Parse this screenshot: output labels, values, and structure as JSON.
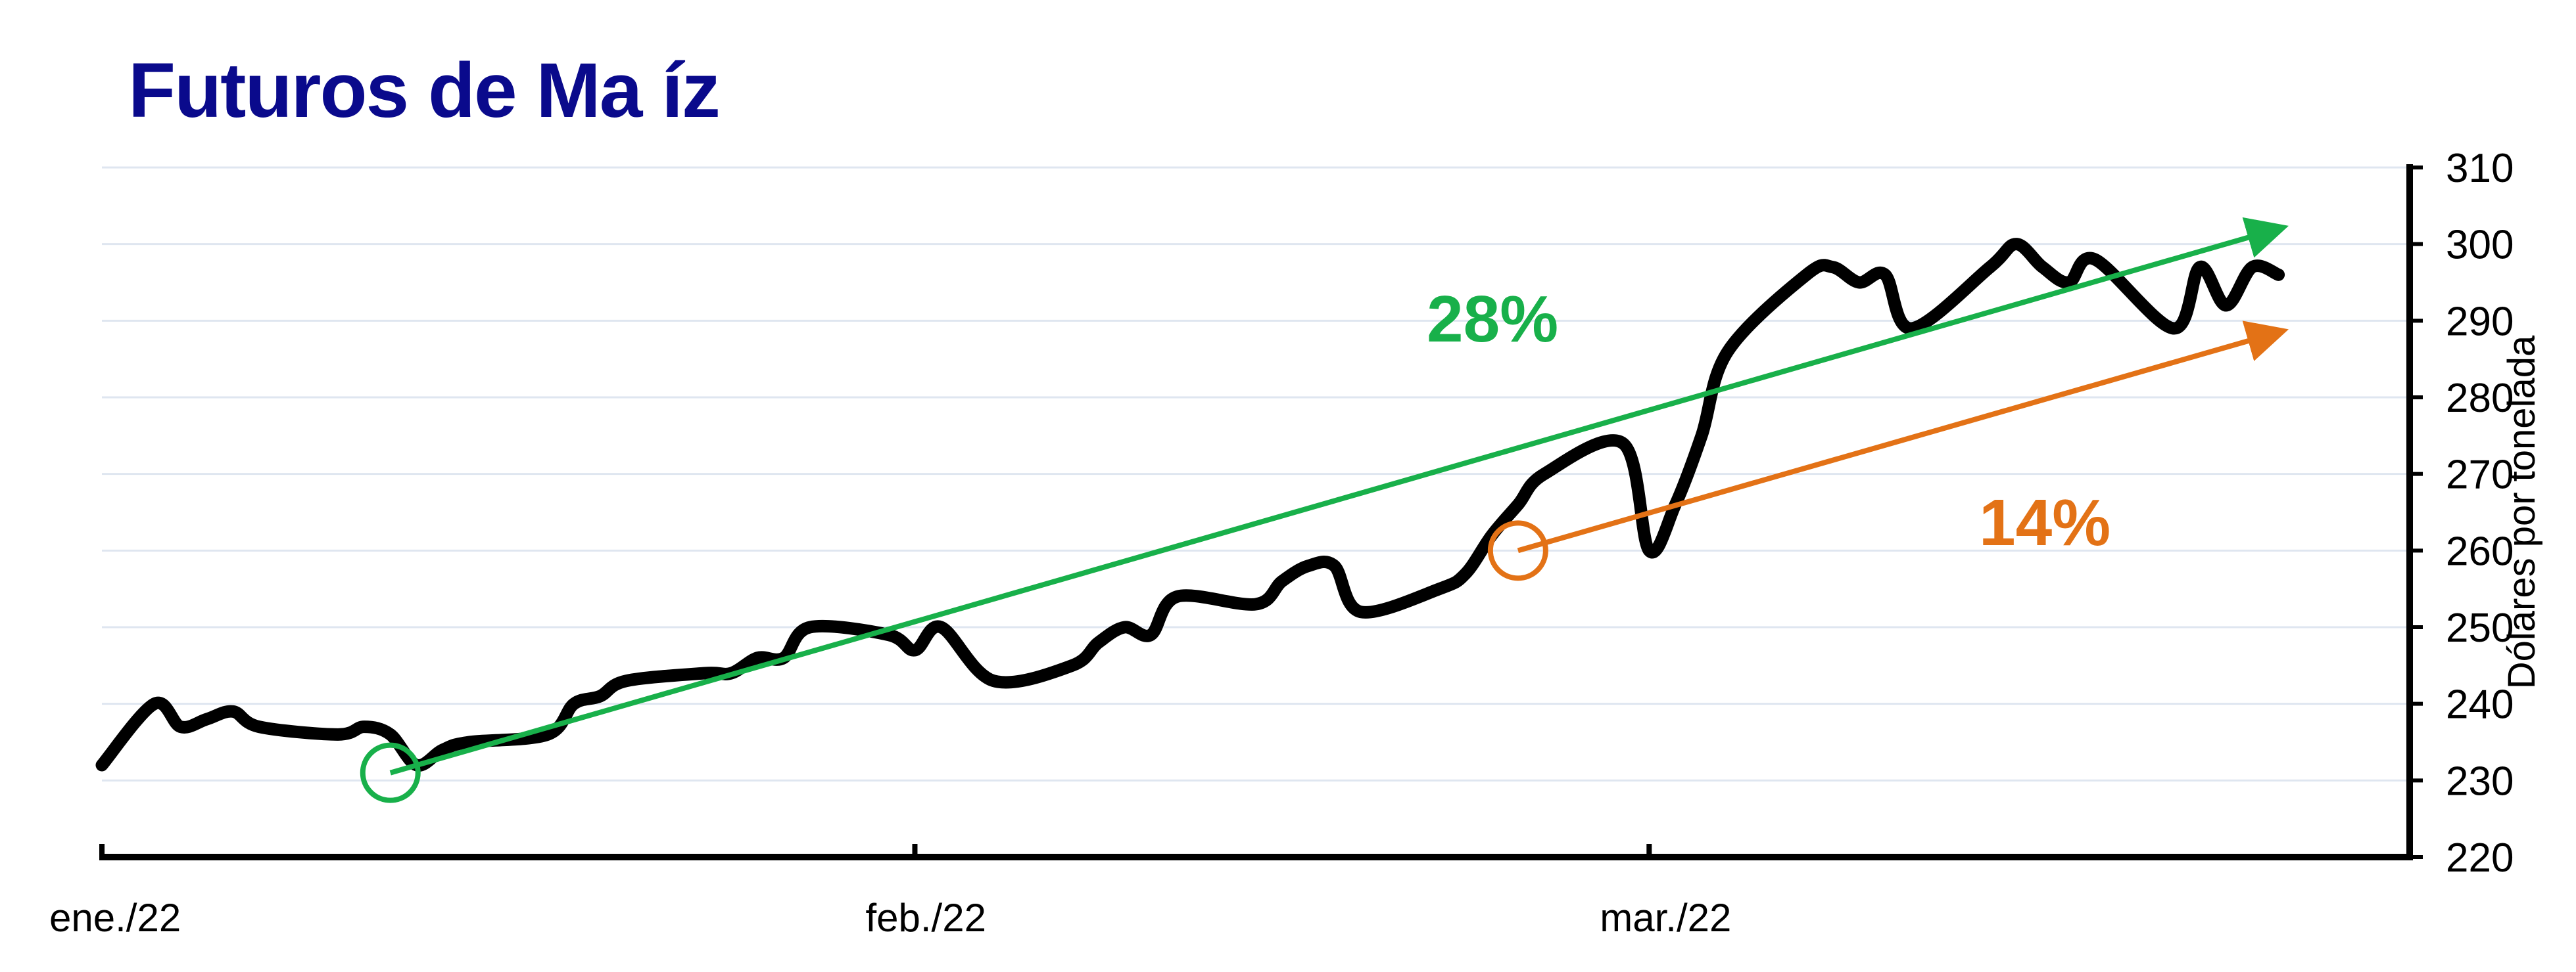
{
  "title": "Futuros de Ma íz",
  "chart_data": {
    "type": "line",
    "title": "Futuros de Ma íz",
    "xlabel": "",
    "ylabel": "Dólares por tonelada",
    "ylim": [
      220,
      310
    ],
    "yticks": [
      220,
      230,
      240,
      250,
      260,
      270,
      280,
      290,
      300,
      310
    ],
    "xlim": [
      "2022-01-01",
      "2022-03-30"
    ],
    "x_tick_labels": [
      {
        "label": "ene./22",
        "date": "2022-01-01"
      },
      {
        "label": "feb./22",
        "date": "2022-02-01"
      },
      {
        "label": "mar./22",
        "date": "2022-03-01"
      }
    ],
    "grid": true,
    "y_axis_side": "right",
    "series": [
      {
        "color": "#000000",
        "x": [
          "2022-01-01",
          "2022-01-03",
          "2022-01-04",
          "2022-01-05",
          "2022-01-06",
          "2022-01-07",
          "2022-01-10",
          "2022-01-11",
          "2022-01-12",
          "2022-01-13",
          "2022-01-14",
          "2022-01-15",
          "2022-01-18",
          "2022-01-19",
          "2022-01-20",
          "2022-01-21",
          "2022-01-24",
          "2022-01-25",
          "2022-01-26",
          "2022-01-27",
          "2022-01-28",
          "2022-01-31",
          "2022-02-01",
          "2022-02-02",
          "2022-02-04",
          "2022-02-07",
          "2022-02-08",
          "2022-02-09",
          "2022-02-10",
          "2022-02-11",
          "2022-02-14",
          "2022-02-15",
          "2022-02-16",
          "2022-02-17",
          "2022-02-18",
          "2022-02-21",
          "2022-02-22",
          "2022-02-23",
          "2022-02-24",
          "2022-02-25",
          "2022-02-28",
          "2022-03-01",
          "2022-03-02",
          "2022-03-03",
          "2022-03-04",
          "2022-03-07",
          "2022-03-08",
          "2022-03-09",
          "2022-03-10",
          "2022-03-11",
          "2022-03-14",
          "2022-03-15",
          "2022-03-16",
          "2022-03-17",
          "2022-03-18",
          "2022-03-21",
          "2022-03-22",
          "2022-03-23",
          "2022-03-24",
          "2022-03-25"
        ],
        "y": [
          232,
          240,
          237,
          238,
          239,
          237,
          236,
          237,
          236,
          232,
          234,
          235,
          236,
          240,
          241,
          243,
          244,
          244,
          246,
          246,
          250,
          249,
          247,
          250,
          243,
          245,
          248,
          250,
          249,
          254,
          253,
          256,
          258,
          258,
          252,
          255,
          257,
          262,
          266,
          270,
          274,
          260,
          266,
          275,
          286,
          296,
          297,
          295,
          296,
          289,
          297,
          300,
          297,
          295,
          298,
          289,
          297,
          292,
          297,
          296
        ]
      }
    ],
    "annotations": [
      {
        "text": "28%",
        "color": "#18b04a",
        "from": {
          "x": "2022-01-12",
          "y": 231
        },
        "to": {
          "x": "2022-03-25",
          "y": 302
        },
        "circle_at": {
          "x": "2022-01-12",
          "y": 231
        }
      },
      {
        "text": "14%",
        "color": "#e37216",
        "from": {
          "x": "2022-02-24",
          "y": 260
        },
        "to": {
          "x": "2022-03-25",
          "y": 288.5
        },
        "circle_at": {
          "x": "2022-02-24",
          "y": 260
        }
      }
    ]
  }
}
